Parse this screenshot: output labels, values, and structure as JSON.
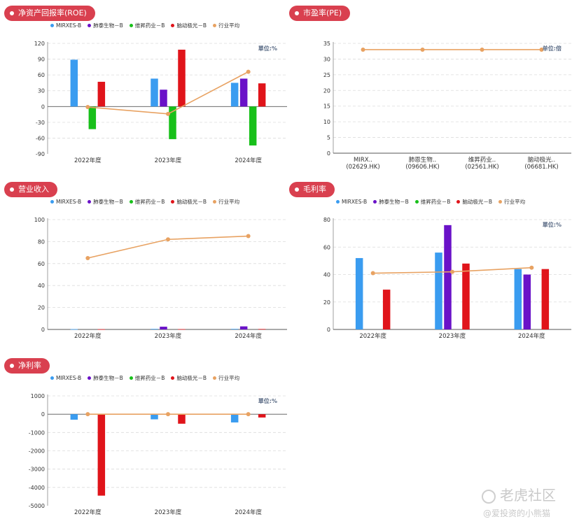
{
  "legend_series": [
    {
      "name": "MIRXES-B",
      "color": "#3a9cf0"
    },
    {
      "name": "肺泰生物－B",
      "color": "#6a12c8"
    },
    {
      "name": "维昇药业－B",
      "color": "#18c01a"
    },
    {
      "name": "脑动极光－B",
      "color": "#e0141a"
    },
    {
      "name": "行业平均",
      "color": "#e8a262"
    }
  ],
  "watermark": {
    "brand": "老虎社区",
    "author": "@爱投资的小熊猫"
  },
  "chart_data": [
    {
      "id": "roe",
      "type": "bar",
      "title": "净资产回报率(ROE)",
      "unit": "單位:%",
      "categories": [
        "2022年度",
        "2023年度",
        "2024年度"
      ],
      "ylim": [
        -90,
        120
      ],
      "yticks": [
        -90,
        -60,
        -30,
        0,
        30,
        60,
        90,
        120
      ],
      "series": [
        {
          "name": "MIRXES-B",
          "values": [
            89,
            53,
            45
          ]
        },
        {
          "name": "肺泰生物－B",
          "values": [
            0,
            32,
            53
          ]
        },
        {
          "name": "维昇药业－B",
          "values": [
            -43,
            -62,
            -74
          ]
        },
        {
          "name": "脑动极光－B",
          "values": [
            47,
            108,
            44
          ]
        }
      ],
      "line": {
        "name": "行业平均",
        "values": [
          -1,
          -14,
          66
        ]
      },
      "grid": true,
      "legend": "top"
    },
    {
      "id": "pe",
      "type": "line",
      "title": "市盈率(PE)",
      "unit": "单位:倍",
      "categories": [
        "MIRX..\n(02629.HK)",
        "肺恩生物..\n(09606.HK)",
        "维昇药业..\n(02561.HK)",
        "脑动极光..\n(06681.HK)"
      ],
      "ylim": [
        0,
        35
      ],
      "yticks": [
        0,
        5,
        10,
        15,
        20,
        25,
        30,
        35
      ],
      "series": [],
      "line": {
        "name": "行业平均",
        "values": [
          33,
          33,
          33,
          33
        ]
      },
      "grid": true,
      "legend": "none"
    },
    {
      "id": "revenue",
      "type": "bar",
      "title": "营业收入",
      "unit": "",
      "categories": [
        "2022年度",
        "2023年度",
        "2024年度"
      ],
      "ylim": [
        0,
        100
      ],
      "yticks": [
        0,
        20,
        40,
        60,
        80,
        100
      ],
      "series": [
        {
          "name": "MIRXES-B",
          "values": [
            0.3,
            0.5,
            0.5
          ]
        },
        {
          "name": "肺泰生物－B",
          "values": [
            0,
            2.5,
            2.8
          ]
        },
        {
          "name": "维昇药业－B",
          "values": [
            0,
            0,
            0
          ]
        },
        {
          "name": "脑动极光－B",
          "values": [
            0.2,
            0.3,
            0.4
          ]
        }
      ],
      "line": {
        "name": "行业平均",
        "values": [
          65,
          82,
          85
        ]
      },
      "grid": true,
      "legend": "top"
    },
    {
      "id": "gross",
      "type": "bar",
      "title": "毛利率",
      "unit": "單位:%",
      "categories": [
        "2022年度",
        "2023年度",
        "2024年度"
      ],
      "ylim": [
        0,
        80
      ],
      "yticks": [
        0,
        20,
        40,
        60,
        80
      ],
      "series": [
        {
          "name": "MIRXES-B",
          "values": [
            52,
            56,
            44
          ]
        },
        {
          "name": "肺泰生物－B",
          "values": [
            0,
            76,
            40
          ]
        },
        {
          "name": "维昇药业－B",
          "values": [
            0,
            0,
            0
          ]
        },
        {
          "name": "脑动极光－B",
          "values": [
            29,
            48,
            44
          ]
        }
      ],
      "line": {
        "name": "行业平均",
        "values": [
          41,
          42,
          45
        ]
      },
      "grid": true,
      "legend": "top"
    },
    {
      "id": "net",
      "type": "bar",
      "title": "净利率",
      "unit": "單位:%",
      "categories": [
        "2022年度",
        "2023年度",
        "2024年度"
      ],
      "ylim": [
        -5000,
        1000
      ],
      "yticks": [
        -5000,
        -4000,
        -3000,
        -2000,
        -1000,
        0,
        1000
      ],
      "series": [
        {
          "name": "MIRXES-B",
          "values": [
            -300,
            -280,
            -450
          ]
        },
        {
          "name": "肺泰生物－B",
          "values": [
            0,
            0,
            0
          ]
        },
        {
          "name": "维昇药业－B",
          "values": [
            0,
            0,
            0
          ]
        },
        {
          "name": "脑动极光－B",
          "values": [
            -4450,
            -520,
            -180
          ]
        }
      ],
      "line": {
        "name": "行业平均",
        "values": [
          0,
          0,
          0
        ]
      },
      "grid": true,
      "legend": "top"
    }
  ]
}
